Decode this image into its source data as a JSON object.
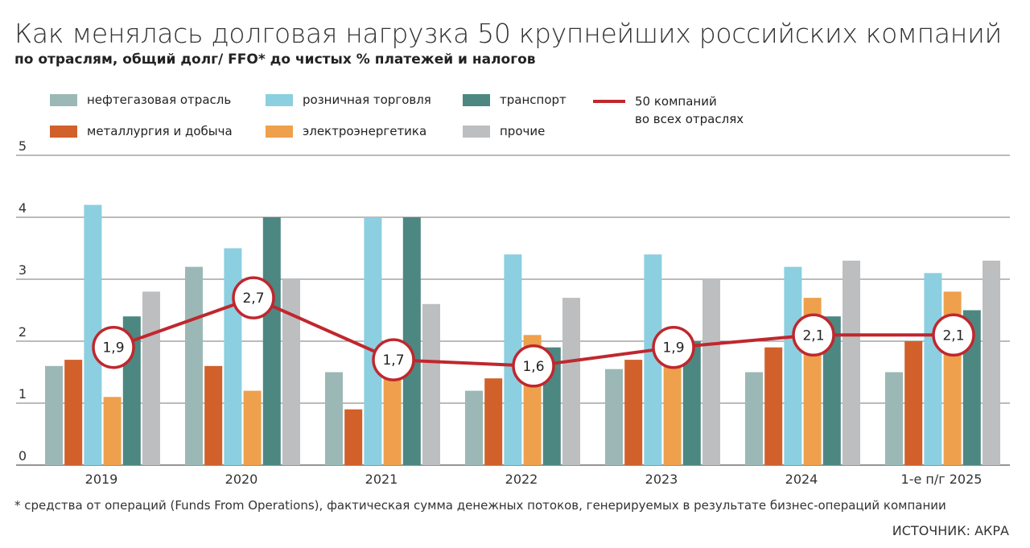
{
  "title": "Как менялась долговая нагрузка 50 крупнейших российских компаний",
  "subtitle": "по отраслям, общий долг/ FFO* до чистых % платежей и налогов",
  "footnote": "* средства от операций (Funds From Operations), фактическая сумма денежных потоков, генерируемых в результате бизнес-операций компании",
  "source": "ИСТОЧНИК: АКРА",
  "chart_data": {
    "type": "bar",
    "title": "Как менялась долговая нагрузка 50 крупнейших российских компаний",
    "subtitle": "по отраслям, общий долг/ FFO* до чистых % платежей и налогов",
    "categories": [
      "2019",
      "2020",
      "2021",
      "2022",
      "2023",
      "2024",
      "1-е п/г 2025"
    ],
    "ylim": [
      0,
      5
    ],
    "yticks": [
      "0",
      "1",
      "2",
      "3",
      "4",
      "5"
    ],
    "grid": true,
    "legend_position": "top",
    "series": [
      {
        "name": "нефтегазовая отрасль",
        "color": "#9bb8b6",
        "values": [
          1.6,
          3.2,
          1.5,
          1.2,
          1.55,
          1.5,
          1.5
        ]
      },
      {
        "name": "металлургия и добыча",
        "color": "#d2602a",
        "values": [
          1.7,
          1.6,
          0.9,
          1.4,
          1.7,
          1.9,
          2.0
        ]
      },
      {
        "name": "розничная торговля",
        "color": "#8ccfe0",
        "values": [
          4.2,
          3.5,
          4.0,
          3.4,
          3.4,
          3.2,
          3.1
        ]
      },
      {
        "name": "электроэнергетика",
        "color": "#eea04c",
        "values": [
          1.1,
          1.2,
          1.5,
          2.1,
          1.8,
          2.7,
          2.8
        ]
      },
      {
        "name": "транспорт",
        "color": "#4d8782",
        "values": [
          2.4,
          4.0,
          4.0,
          1.9,
          2.0,
          2.4,
          2.5
        ]
      },
      {
        "name": "прочие",
        "color": "#bdbec0",
        "values": [
          2.8,
          3.0,
          2.6,
          2.7,
          3.0,
          3.3,
          3.3
        ]
      }
    ],
    "line": {
      "name": "50 компаний во всех отраслях",
      "name_lines": [
        "50 компаний",
        "во всех отраслях"
      ],
      "color": "#c0272d",
      "values": [
        1.9,
        2.7,
        1.7,
        1.6,
        1.9,
        2.1,
        2.1
      ],
      "labels": [
        "1,9",
        "2,7",
        "1,7",
        "1,6",
        "1,9",
        "2,1",
        "2,1"
      ]
    }
  }
}
